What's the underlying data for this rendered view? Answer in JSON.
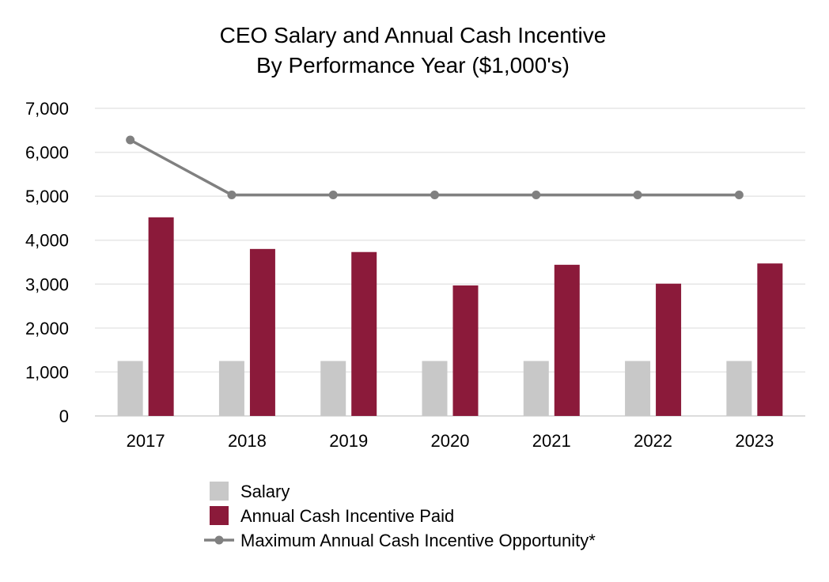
{
  "chart_data": {
    "type": "bar",
    "title": "CEO Salary and Annual Cash Incentive",
    "subtitle": "By Performance Year ($1,000's)",
    "xlabel": "",
    "ylabel": "",
    "ylim": [
      0,
      7000
    ],
    "yticks": [
      0,
      1000,
      2000,
      3000,
      4000,
      5000,
      6000,
      7000
    ],
    "ytick_labels": [
      "0",
      "1,000",
      "2,000",
      "3,000",
      "4,000",
      "5,000",
      "6,000",
      "7,000"
    ],
    "grid": true,
    "legend_position": "bottom",
    "categories": [
      "2017",
      "2018",
      "2019",
      "2020",
      "2021",
      "2022",
      "2023"
    ],
    "series": [
      {
        "name": "Salary",
        "kind": "bar",
        "color": "#c8c8c8",
        "values": [
          1250,
          1250,
          1250,
          1250,
          1250,
          1250,
          1250
        ]
      },
      {
        "name": "Annual Cash Incentive Paid",
        "kind": "bar",
        "color": "#8b1a3a",
        "values": [
          4520,
          3800,
          3730,
          2970,
          3440,
          3010,
          3470
        ]
      },
      {
        "name": "Maximum Annual Cash Incentive Opportunity*",
        "kind": "line",
        "color": "#808080",
        "values": [
          6280,
          5030,
          5030,
          5030,
          5030,
          5030,
          5030
        ]
      }
    ]
  }
}
